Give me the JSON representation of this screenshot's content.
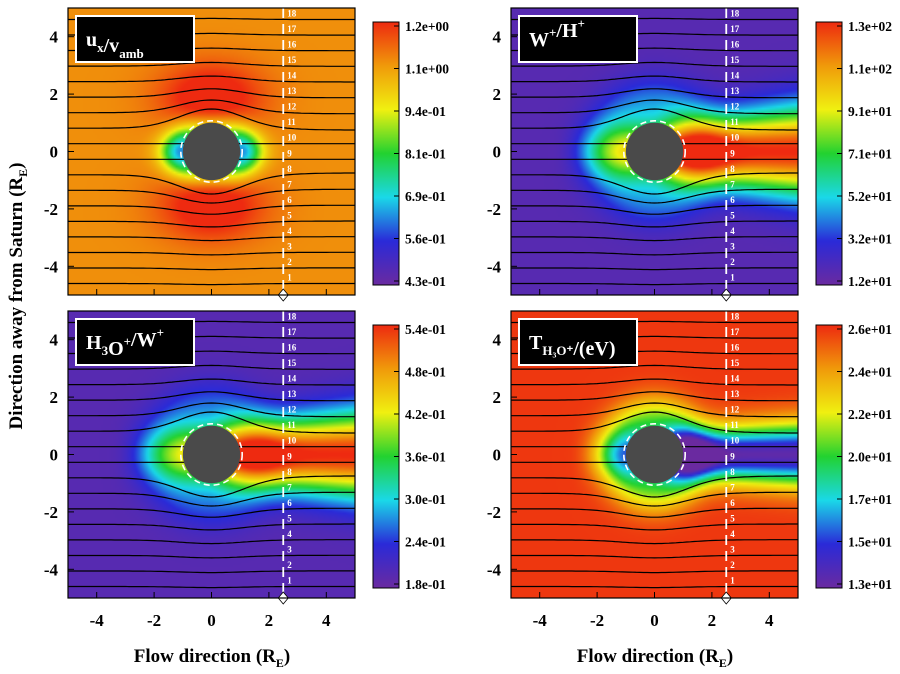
{
  "figure": {
    "ylabel": "Direction away from Saturn (R",
    "ylabel_sub": "E",
    "ylabel_close": ")",
    "xlabel": "Flow direction (R",
    "xlabel_sub": "E",
    "xlabel_close": ")"
  },
  "colormap": [
    "#6a2aa0",
    "#2a2ad8",
    "#1ad8e8",
    "#22d230",
    "#f0f010",
    "#f09a0a",
    "#ee2a10"
  ],
  "chart_data": [
    {
      "type": "heatmap",
      "panel": "top-left",
      "label": {
        "parts": [
          [
            "u",
            "",
            "x"
          ],
          [
            "/v",
            "",
            "amb"
          ]
        ]
      },
      "field": "ux",
      "xlim": [
        -5,
        5
      ],
      "ylim": [
        -5,
        5
      ],
      "xticks": [
        "-4",
        "-2",
        "0",
        "2",
        "4"
      ],
      "yticks": [
        "4",
        "2",
        "0",
        "-2",
        "-4"
      ],
      "show_xticks": false,
      "show_yticks": true,
      "colorbar_ticks": [
        "1.2e+00",
        "1.1e+00",
        "9.4e-01",
        "8.1e-01",
        "6.9e-01",
        "5.6e-01",
        "4.3e-01"
      ],
      "obstacle": {
        "center": [
          0,
          0
        ],
        "radius": 1.0
      },
      "cut_line_x": 2.5,
      "streamline_labels": [
        "18",
        "17",
        "16",
        "15",
        "14",
        "13",
        "12",
        "11",
        "10",
        "9",
        "8",
        "7",
        "6",
        "5",
        "4",
        "3",
        "2",
        "1"
      ]
    },
    {
      "type": "heatmap",
      "panel": "top-right",
      "label": {
        "parts": [
          [
            "W",
            "+",
            ""
          ],
          [
            "/H",
            "+",
            ""
          ]
        ]
      },
      "field": "ratio_wh",
      "xlim": [
        -5,
        5
      ],
      "ylim": [
        -5,
        5
      ],
      "xticks": [
        "-4",
        "-2",
        "0",
        "2",
        "4"
      ],
      "yticks": [
        "4",
        "2",
        "0",
        "-2",
        "-4"
      ],
      "show_xticks": false,
      "show_yticks": true,
      "colorbar_ticks": [
        "1.3e+02",
        "1.1e+02",
        "9.1e+01",
        "7.1e+01",
        "5.2e+01",
        "3.2e+01",
        "1.2e+01"
      ],
      "obstacle": {
        "center": [
          0,
          0
        ],
        "radius": 1.0
      },
      "cut_line_x": 2.5,
      "streamline_labels": [
        "18",
        "17",
        "16",
        "15",
        "14",
        "13",
        "12",
        "11",
        "10",
        "9",
        "8",
        "7",
        "6",
        "5",
        "4",
        "3",
        "2",
        "1"
      ]
    },
    {
      "type": "heatmap",
      "panel": "bottom-left",
      "label": {
        "parts": [
          [
            "H",
            "",
            "3"
          ],
          [
            "O",
            "+",
            ""
          ],
          [
            "/W",
            "+",
            ""
          ]
        ]
      },
      "field": "ratio_h3o",
      "xlim": [
        -5,
        5
      ],
      "ylim": [
        -5,
        5
      ],
      "xticks": [
        "-4",
        "-2",
        "0",
        "2",
        "4"
      ],
      "yticks": [
        "4",
        "2",
        "0",
        "-2",
        "-4"
      ],
      "show_xticks": true,
      "show_yticks": true,
      "colorbar_ticks": [
        "5.4e-01",
        "4.8e-01",
        "4.2e-01",
        "3.6e-01",
        "3.0e-01",
        "2.4e-01",
        "1.8e-01"
      ],
      "obstacle": {
        "center": [
          0,
          0
        ],
        "radius": 1.0
      },
      "cut_line_x": 2.5,
      "streamline_labels": [
        "18",
        "17",
        "16",
        "15",
        "14",
        "13",
        "12",
        "11",
        "10",
        "9",
        "8",
        "7",
        "6",
        "5",
        "4",
        "3",
        "2",
        "1"
      ]
    },
    {
      "type": "heatmap",
      "panel": "bottom-right",
      "label": {
        "parts": [
          [
            "T",
            "",
            "H₃O⁺"
          ],
          [
            "/(eV)",
            "",
            ""
          ]
        ]
      },
      "field": "temp",
      "xlim": [
        -5,
        5
      ],
      "ylim": [
        -5,
        5
      ],
      "xticks": [
        "-4",
        "-2",
        "0",
        "2",
        "4"
      ],
      "yticks": [
        "4",
        "2",
        "0",
        "-2",
        "-4"
      ],
      "show_xticks": true,
      "show_yticks": true,
      "colorbar_ticks": [
        "2.6e+01",
        "2.4e+01",
        "2.2e+01",
        "2.0e+01",
        "1.7e+01",
        "1.5e+01",
        "1.3e+01"
      ],
      "obstacle": {
        "center": [
          0,
          0
        ],
        "radius": 1.0
      },
      "cut_line_x": 2.5,
      "streamline_labels": [
        "18",
        "17",
        "16",
        "15",
        "14",
        "13",
        "12",
        "11",
        "10",
        "9",
        "8",
        "7",
        "6",
        "5",
        "4",
        "3",
        "2",
        "1"
      ]
    }
  ]
}
